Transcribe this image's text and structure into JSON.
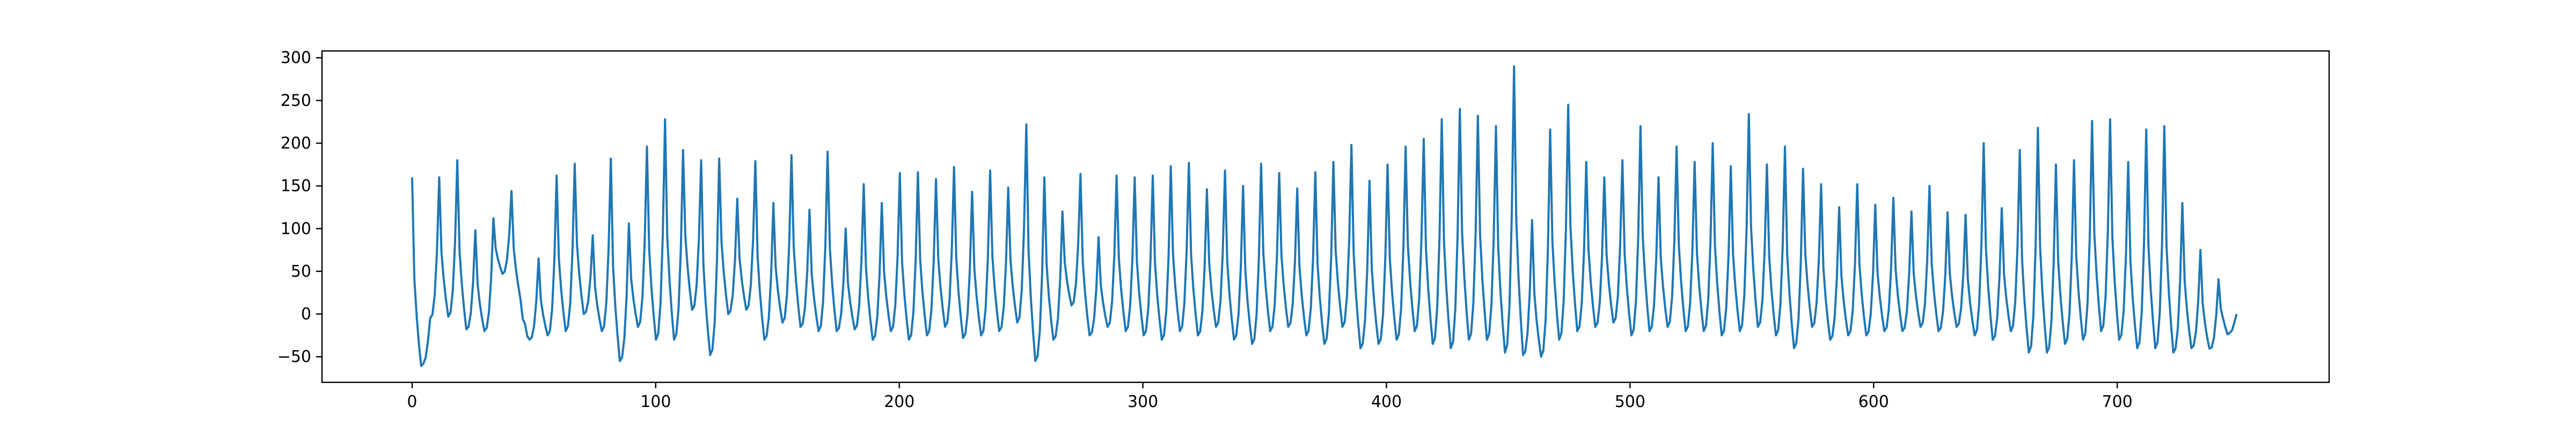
{
  "chart_data": {
    "type": "line",
    "title": "",
    "xlabel": "",
    "ylabel": "",
    "xlim": [
      -37,
      787
    ],
    "ylim": [
      -80,
      308
    ],
    "xticks": [
      0,
      100,
      200,
      300,
      400,
      500,
      600,
      700
    ],
    "yticks": [
      -50,
      0,
      50,
      100,
      150,
      200,
      250,
      300
    ],
    "grid": false,
    "legend": "none",
    "series": [
      {
        "color": "#1f77b4",
        "peaks": [
          160,
          -62,
          -5,
          160,
          -3,
          180,
          -18,
          98,
          -20,
          112,
          47,
          144,
          18,
          -30,
          65,
          -25,
          162,
          -20,
          176,
          0,
          92,
          -20,
          182,
          -55,
          106,
          -15,
          196,
          -30,
          228,
          -30,
          192,
          5,
          180,
          -48,
          182,
          0,
          135,
          5,
          179,
          -30,
          130,
          -10,
          186,
          -15,
          122,
          -20,
          190,
          -20,
          100,
          -18,
          152,
          -30,
          130,
          -20,
          165,
          -30,
          166,
          -25,
          158,
          -15,
          172,
          -28,
          143,
          -25,
          168,
          -20,
          148,
          -10,
          222,
          -55,
          160,
          -30,
          120,
          10,
          164,
          -25,
          90,
          -15,
          162,
          -20,
          160,
          -25,
          162,
          -30,
          173,
          -20,
          177,
          -25,
          146,
          -15,
          168,
          -30,
          150,
          -35,
          176,
          -20,
          165,
          -15,
          147,
          -25,
          166,
          -35,
          178,
          -15,
          198,
          -40,
          156,
          -35,
          175,
          -30,
          196,
          -20,
          205,
          -35,
          228,
          -40,
          240,
          -30,
          232,
          -30,
          220,
          -45,
          290,
          -48,
          110,
          -50,
          216,
          -30,
          245,
          -20,
          178,
          -15,
          160,
          -10,
          180,
          -25,
          220,
          -20,
          160,
          -15,
          196,
          -20,
          178,
          -20,
          200,
          -25,
          173,
          -20,
          234,
          -15,
          175,
          -25,
          196,
          -40,
          170,
          -15,
          152,
          -30,
          125,
          -25,
          152,
          -25,
          128,
          -20,
          136,
          -20,
          120,
          -15,
          150,
          -20,
          119,
          -15,
          116,
          -25,
          200,
          -30,
          124,
          -20,
          192,
          -45,
          218,
          -45,
          175,
          -35,
          180,
          -30,
          226,
          -20,
          228,
          -30,
          178,
          -40,
          216,
          -40,
          220,
          -45,
          130,
          -40,
          75,
          -42,
          40,
          -25,
          0
        ],
        "trough_dips": [
          2,
          4,
          8,
          6,
          10,
          3,
          -8,
          15,
          -5,
          4,
          -10,
          12,
          -4,
          6,
          18,
          -6,
          9,
          2,
          -12,
          5
        ],
        "n_points": 750
      }
    ]
  }
}
